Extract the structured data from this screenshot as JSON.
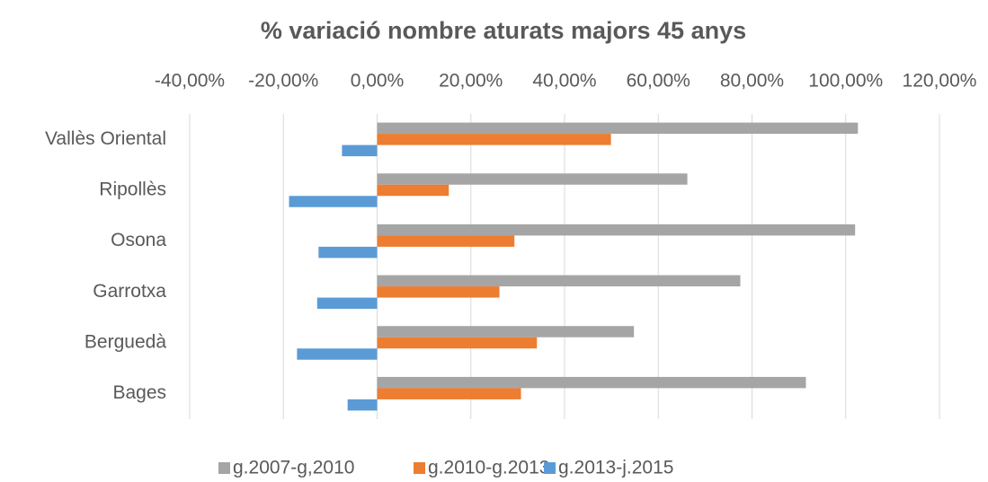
{
  "chart_data": {
    "type": "bar",
    "orientation": "horizontal",
    "title": "% variació nombre aturats majors 45 anys",
    "categories": [
      "Vallès Oriental",
      "Ripollès",
      "Osona",
      "Garrotxa",
      "Berguedà",
      "Bages"
    ],
    "series": [
      {
        "name": "g.2007-g,2010",
        "color": "#a5a5a5",
        "values": [
          102.6,
          66.2,
          102,
          77.5,
          54.8,
          91.5
        ]
      },
      {
        "name": "g.2010-g.2013",
        "color": "#ed7d31",
        "values": [
          49.9,
          15.3,
          29.3,
          26.1,
          34.1,
          30.7
        ]
      },
      {
        "name": "g.2013-j.2015",
        "color": "#5b9bd5",
        "values": [
          -7.5,
          -18.8,
          -12.5,
          -12.8,
          -17.1,
          -6.3
        ]
      }
    ],
    "xlim": [
      -40,
      120
    ],
    "xticks": [
      {
        "value": -40,
        "label": "-40,00%"
      },
      {
        "value": -20,
        "label": "-20,00%"
      },
      {
        "value": 0,
        "label": "0,00%"
      },
      {
        "value": 20,
        "label": "20,00%"
      },
      {
        "value": 40,
        "label": "40,00%"
      },
      {
        "value": 60,
        "label": "60,00%"
      },
      {
        "value": 80,
        "label": "80,00%"
      },
      {
        "value": 100,
        "label": "100,00%"
      },
      {
        "value": 120,
        "label": "120,00%"
      }
    ],
    "grid": true,
    "legend": "bottom"
  }
}
